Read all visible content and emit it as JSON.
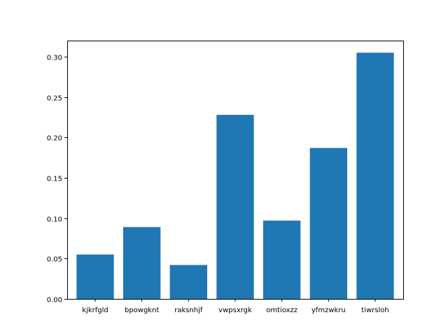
{
  "chart_data": {
    "type": "bar",
    "title": "",
    "xlabel": "",
    "ylabel": "",
    "categories": [
      "kjkrfgld",
      "bpowgknt",
      "raksnhjf",
      "vwpsxrgk",
      "omtioxzz",
      "yfmzwkru",
      "tiwrsloh"
    ],
    "values": [
      0.055,
      0.089,
      0.042,
      0.228,
      0.097,
      0.187,
      0.305
    ],
    "ylim": [
      0,
      0.32
    ],
    "yticks": [
      0.0,
      0.05,
      0.1,
      0.15,
      0.2,
      0.25,
      0.3
    ],
    "ytick_labels": [
      "0.00",
      "0.05",
      "0.10",
      "0.15",
      "0.20",
      "0.25",
      "0.30"
    ],
    "bar_color": "#1f77b4",
    "grid": false,
    "legend": "none"
  }
}
